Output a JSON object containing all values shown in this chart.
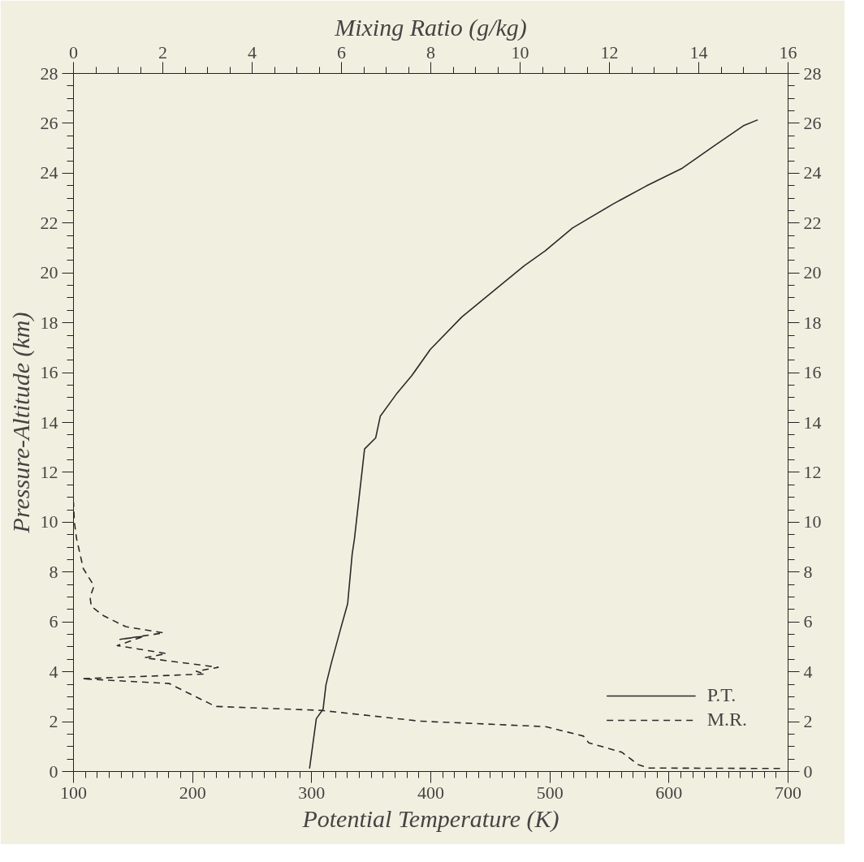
{
  "chart_data": {
    "type": "line",
    "xlabel": "Potential Temperature (K)",
    "ylabel": "Pressure-Altitude (km)",
    "x2label": "Mixing Ratio (g/kg)",
    "xlim": [
      100,
      700
    ],
    "xticks": [
      100,
      200,
      300,
      400,
      500,
      600,
      700
    ],
    "x2lim": [
      0,
      16
    ],
    "x2ticks": [
      0,
      2,
      4,
      6,
      8,
      10,
      12,
      14,
      16
    ],
    "ylim": [
      0,
      28
    ],
    "yticks": [
      0,
      2,
      4,
      6,
      8,
      10,
      12,
      14,
      16,
      18,
      20,
      22,
      24,
      26,
      28
    ],
    "y2lim": [
      0,
      28
    ],
    "y2ticks": [
      0,
      2,
      4,
      6,
      8,
      10,
      12,
      14,
      16,
      18,
      20,
      22,
      24,
      26,
      28
    ],
    "grid": false,
    "legend": "bottom right",
    "marker": "none",
    "series": [
      {
        "name": "P.T.",
        "color": "#2a2a2a",
        "line_style": "solid",
        "x": [
          298.2,
          303.9,
          309.6,
          312,
          316.5,
          324.5,
          330.2,
          334,
          335.9,
          344.4,
          353.7,
          357.6,
          370.8,
          383.9,
          399.6,
          426,
          454.8,
          478.5,
          496,
          519,
          553.3,
          580.7,
          610.5,
          638,
          663.1,
          674.6
        ],
        "values": [
          0.12,
          2.12,
          2.5,
          3.48,
          4.35,
          5.76,
          6.73,
          8.72,
          9.33,
          12.94,
          13.38,
          14.25,
          15.12,
          15.87,
          16.93,
          18.23,
          19.36,
          20.29,
          20.88,
          21.8,
          22.77,
          23.48,
          24.18,
          25.1,
          25.92,
          26.14
        ]
      },
      {
        "name": "M.R.",
        "color": "#2a2a2a",
        "line_style": "dashed",
        "axis": "x2",
        "x": [
          15.82,
          12.89,
          12.64,
          12.28,
          11.54,
          11.42,
          10.57,
          7.76,
          5.56,
          3.18,
          2.75,
          2.14,
          0.19,
          2.94,
          2.75,
          3.24,
          1.59,
          2.08,
          0.98,
          1.59,
          1.04,
          2.02,
          1.17,
          0.68,
          0.4,
          0.37,
          0.46,
          0.22,
          0.07,
          0.02,
          0.0
        ],
        "values": [
          0.12,
          0.14,
          0.28,
          0.77,
          1.15,
          1.42,
          1.8,
          2.02,
          2.45,
          2.61,
          2.99,
          3.53,
          3.72,
          3.91,
          4.02,
          4.18,
          4.56,
          4.73,
          5.05,
          5.43,
          5.3,
          5.56,
          5.81,
          6.24,
          6.62,
          7.0,
          7.44,
          8.14,
          9.33,
          10.0,
          10.8
        ]
      }
    ]
  }
}
